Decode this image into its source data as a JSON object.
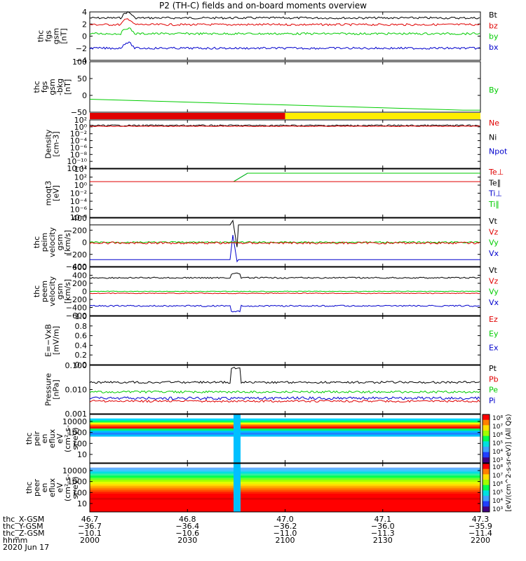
{
  "title": "P2 (TH-C) fields and on-board moments overview",
  "colors": {
    "black": "#000000",
    "red": "#e00000",
    "green": "#00cc00",
    "blue": "#0000cc",
    "yellow": "#ffee00"
  },
  "chart_data": [
    {
      "type": "line",
      "ylabel_lines": [
        "thc",
        "fgs",
        "gsm",
        "[nT]"
      ],
      "yticks": [
        "4",
        "2",
        "0",
        "−2",
        "−4"
      ],
      "ylim": [
        -4,
        4
      ],
      "series": [
        {
          "name": "Bt",
          "color": "black",
          "base": 3.0
        },
        {
          "name": "bz",
          "color": "red",
          "base": 1.9
        },
        {
          "name": "by",
          "color": "green",
          "base": 0.4
        },
        {
          "name": "bx",
          "color": "blue",
          "base": -2.0
        }
      ]
    },
    {
      "type": "line",
      "ylabel_lines": [
        "thc",
        "fgs",
        "gsm",
        "-bkg",
        "[nT]"
      ],
      "yticks": [
        "100",
        "50",
        "0",
        "−50"
      ],
      "ylim": [
        -75,
        100
      ],
      "series": [
        {
          "name": "By",
          "color": "green",
          "start": -30,
          "end": -68
        }
      ]
    },
    {
      "type": "bar",
      "label": "mode bar",
      "segments": [
        {
          "color": "red",
          "from": 0,
          "to": 0.5
        },
        {
          "color": "yellow",
          "from": 0.5,
          "to": 1
        }
      ]
    },
    {
      "type": "line",
      "ylabel_lines": [
        "Density",
        "[cm-3]"
      ],
      "yticks": [
        "10²",
        "10⁰",
        "10⁻²",
        "10⁻⁴",
        "10⁻⁶",
        "10⁻⁸",
        "10⁻¹⁰",
        "10⁻¹²"
      ],
      "series": [
        {
          "name": "Ne",
          "color": "red"
        },
        {
          "name": "Ni",
          "color": "black"
        },
        {
          "name": "Npot",
          "color": "blue"
        }
      ]
    },
    {
      "type": "line",
      "ylabel_lines": [
        "moqt3",
        "[eV]"
      ],
      "yticks": [
        "10⁴",
        "10²",
        "10⁰",
        "10⁻²",
        "10⁻⁴",
        "10⁻⁶",
        "10⁻⁸"
      ],
      "series": [
        {
          "name": "Te⊥",
          "color": "red"
        },
        {
          "name": "Te∥",
          "color": "black"
        },
        {
          "name": "Ti⊥",
          "color": "blue"
        },
        {
          "name": "Ti∥",
          "color": "green"
        }
      ]
    },
    {
      "type": "line",
      "ylabel_lines": [
        "thc",
        "peim",
        "velocity",
        "gsm",
        "[km/s]"
      ],
      "yticks": [
        "400",
        "200",
        "0",
        "−200",
        "−400"
      ],
      "series": [
        {
          "name": "Vt",
          "color": "black",
          "base": 260
        },
        {
          "name": "Vz",
          "color": "red",
          "base": 0
        },
        {
          "name": "Vy",
          "color": "green",
          "base": 0
        },
        {
          "name": "Vx",
          "color": "blue",
          "base": -260
        }
      ]
    },
    {
      "type": "line",
      "ylabel_lines": [
        "thc",
        "peem",
        "velocity",
        "gsm",
        "[km/s]"
      ],
      "yticks": [
        "600",
        "400",
        "200",
        "0",
        "−200",
        "−400",
        "−600"
      ],
      "series": [
        {
          "name": "Vt",
          "color": "black",
          "base": 340
        },
        {
          "name": "Vz",
          "color": "red",
          "base": -20
        },
        {
          "name": "Vy",
          "color": "green",
          "base": 0
        },
        {
          "name": "Vx",
          "color": "blue",
          "base": -320
        }
      ]
    },
    {
      "type": "line",
      "ylabel_lines": [
        "E=−VxB",
        "[mV/m]"
      ],
      "yticks": [
        "1.0",
        "0.8",
        "0.6",
        "0.4",
        "0.2",
        "0.0"
      ],
      "series": [
        {
          "name": "Ez",
          "color": "red"
        },
        {
          "name": "Ey",
          "color": "green"
        },
        {
          "name": "Ex",
          "color": "blue"
        }
      ]
    },
    {
      "type": "line",
      "ylabel_lines": [
        "Pressure",
        "[nPa]"
      ],
      "yticks": [
        "0.100",
        "0.010",
        "0.001"
      ],
      "series": [
        {
          "name": "Pt",
          "color": "black"
        },
        {
          "name": "Pb",
          "color": "red"
        },
        {
          "name": "Pe",
          "color": "green"
        },
        {
          "name": "Pi",
          "color": "blue"
        }
      ]
    },
    {
      "type": "heatmap",
      "ylabel_lines": [
        "thc",
        "peir",
        "en",
        "eflux",
        "eV",
        "(cm²-s-",
        "sr-eV)"
      ],
      "yticks": [
        "10000",
        "1000",
        "100",
        "10"
      ]
    },
    {
      "type": "heatmap",
      "ylabel_lines": [
        "thc",
        "peer",
        "en",
        "eflux",
        "eV",
        "(cm²-s-",
        "sr-eV)"
      ],
      "yticks": [
        "10000",
        "1000",
        "100",
        "10"
      ]
    }
  ],
  "colorbar": {
    "ticks": [
      "10⁸",
      "10⁷",
      "10⁶",
      "10⁵",
      "10⁴",
      "10³"
    ],
    "label": "[eV/(cm^2-s-sr-eV)] (All Qs)"
  },
  "footer": {
    "rows": [
      {
        "label": "thc_X-GSM",
        "values": [
          "46.7",
          "46.8",
          "47.0",
          "47.1",
          "47.3"
        ]
      },
      {
        "label": "thc_Y-GSM",
        "values": [
          "−36.7",
          "−36.4",
          "−36.2",
          "−36.0",
          "−35.9"
        ]
      },
      {
        "label": "thc_Z-GSM",
        "values": [
          "−10.1",
          "−10.6",
          "−11.0",
          "−11.3",
          "−11.4"
        ]
      },
      {
        "label": "hhmm",
        "values": [
          "2000",
          "2030",
          "2100",
          "2130",
          "2200"
        ]
      }
    ],
    "date": "2020 Jun 17"
  }
}
